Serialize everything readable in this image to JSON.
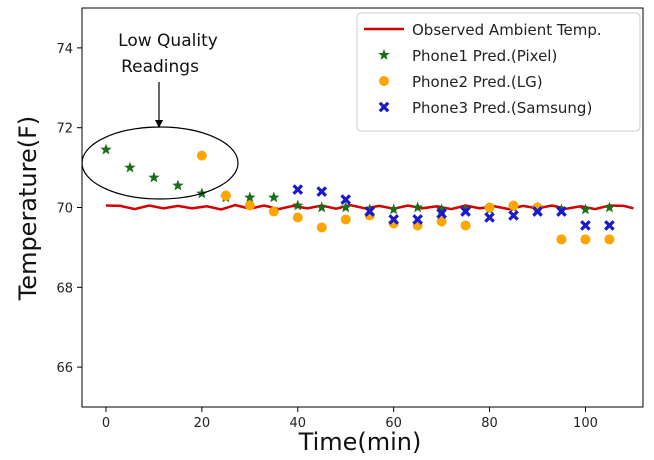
{
  "chart_data": {
    "type": "scatter",
    "title": "",
    "xlabel": "Time(min)",
    "ylabel": "Temperature(F)",
    "xlim": [
      -5,
      112
    ],
    "ylim": [
      65,
      75
    ],
    "xticks": [
      0,
      20,
      40,
      60,
      80,
      100
    ],
    "yticks": [
      66,
      68,
      70,
      72,
      74
    ],
    "grid": false,
    "legend_position": "top-right",
    "line_series": {
      "name": "Observed Ambient Temp.",
      "color": "#d40000",
      "x": [
        0,
        3,
        6,
        9,
        12,
        15,
        18,
        21,
        24,
        27,
        30,
        33,
        36,
        39,
        42,
        45,
        48,
        51,
        54,
        57,
        60,
        63,
        66,
        69,
        72,
        75,
        78,
        81,
        84,
        87,
        90,
        93,
        96,
        99,
        102,
        105,
        108,
        110
      ],
      "y": [
        70.05,
        70.04,
        69.96,
        70.05,
        69.98,
        70.04,
        69.98,
        70.03,
        69.95,
        70.06,
        69.97,
        70.05,
        69.96,
        70.04,
        69.98,
        70.05,
        69.97,
        70.06,
        69.98,
        70.04,
        69.97,
        70.05,
        69.98,
        70.03,
        69.96,
        70.05,
        69.98,
        70.03,
        69.96,
        70.04,
        69.98,
        70.05,
        69.97,
        70.03,
        69.96,
        70.05,
        70.04,
        69.98
      ]
    },
    "series": [
      {
        "name": "Phone1 Pred.(Pixel)",
        "marker": "star",
        "color": "#1a6e1a",
        "x": [
          0,
          5,
          10,
          15,
          20,
          25,
          30,
          35,
          40,
          45,
          50,
          55,
          60,
          65,
          70,
          75,
          80,
          85,
          90,
          95,
          100,
          105
        ],
        "y": [
          71.45,
          71.0,
          70.75,
          70.55,
          70.35,
          70.25,
          70.25,
          70.25,
          70.05,
          70.0,
          70.0,
          69.95,
          69.95,
          70.0,
          69.95,
          69.95,
          69.95,
          70.0,
          70.0,
          69.95,
          69.95,
          70.0
        ]
      },
      {
        "name": "Phone2 Pred.(LG)",
        "marker": "circle",
        "color": "#ffa500",
        "x": [
          20,
          25,
          30,
          35,
          40,
          45,
          50,
          55,
          60,
          65,
          70,
          75,
          80,
          85,
          90,
          95,
          100,
          105
        ],
        "y": [
          71.3,
          70.3,
          70.05,
          69.9,
          69.75,
          69.5,
          69.7,
          69.8,
          69.6,
          69.55,
          69.65,
          69.55,
          70.0,
          70.05,
          70.0,
          69.2,
          69.2,
          69.2
        ]
      },
      {
        "name": "Phone3 Pred.(Samsung)",
        "marker": "x",
        "color": "#1a1acc",
        "x": [
          40,
          45,
          50,
          55,
          60,
          65,
          70,
          75,
          80,
          85,
          90,
          95,
          100,
          105
        ],
        "y": [
          70.45,
          70.4,
          70.2,
          69.9,
          69.7,
          69.7,
          69.85,
          69.9,
          69.75,
          69.8,
          69.9,
          69.9,
          69.55,
          69.55
        ]
      }
    ],
    "annotations": [
      {
        "text_lines": [
          "Low Quality",
          "Readings"
        ],
        "target": "Low Quality Readings region"
      }
    ]
  }
}
